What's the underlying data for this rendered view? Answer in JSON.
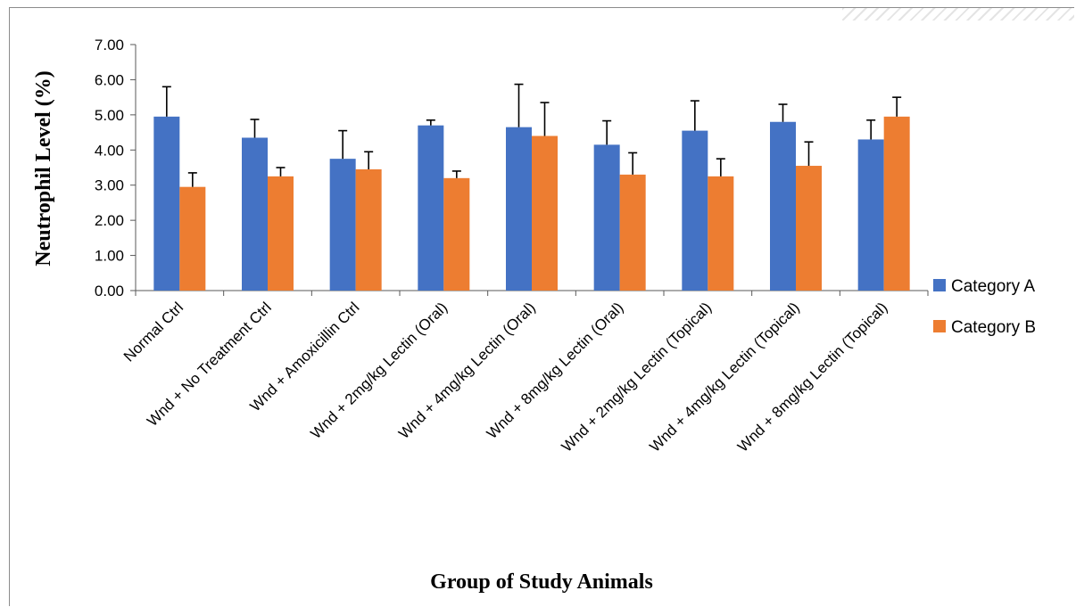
{
  "chart_data": {
    "type": "bar",
    "title": "",
    "xlabel": "Group of Study Animals",
    "ylabel": "Neutrophil Level (%)",
    "ylim": [
      0,
      7
    ],
    "yticks": [
      "0.00",
      "1.00",
      "2.00",
      "3.00",
      "4.00",
      "5.00",
      "6.00",
      "7.00"
    ],
    "grid": false,
    "legend_position": "right",
    "categories": [
      "Normal Ctrl",
      "Wnd + No Treatment Ctrl",
      "Wnd + Amoxicillin Ctrl",
      "Wnd + 2mg/kg Lectin (Oral)",
      "Wnd + 4mg/kg Lectin (Oral)",
      "Wnd + 8mg/kg Lectin (Oral)",
      "Wnd + 2mg/kg Lectin (Topical)",
      "Wnd + 4mg/kg Lectin (Topical)",
      "Wnd + 8mg/kg Lectin (Topical)"
    ],
    "series": [
      {
        "name": "Category A",
        "color": "#4472C4",
        "values": [
          4.95,
          4.35,
          3.75,
          4.7,
          4.65,
          4.15,
          4.55,
          4.8,
          4.3
        ],
        "errors": [
          0.85,
          0.52,
          0.8,
          0.15,
          1.22,
          0.68,
          0.85,
          0.5,
          0.55
        ]
      },
      {
        "name": "Category B",
        "color": "#ED7D31",
        "values": [
          2.95,
          3.25,
          3.45,
          3.2,
          4.4,
          3.3,
          3.25,
          3.55,
          4.95
        ],
        "errors": [
          0.4,
          0.25,
          0.5,
          0.2,
          0.95,
          0.62,
          0.5,
          0.68,
          0.55
        ]
      }
    ]
  }
}
